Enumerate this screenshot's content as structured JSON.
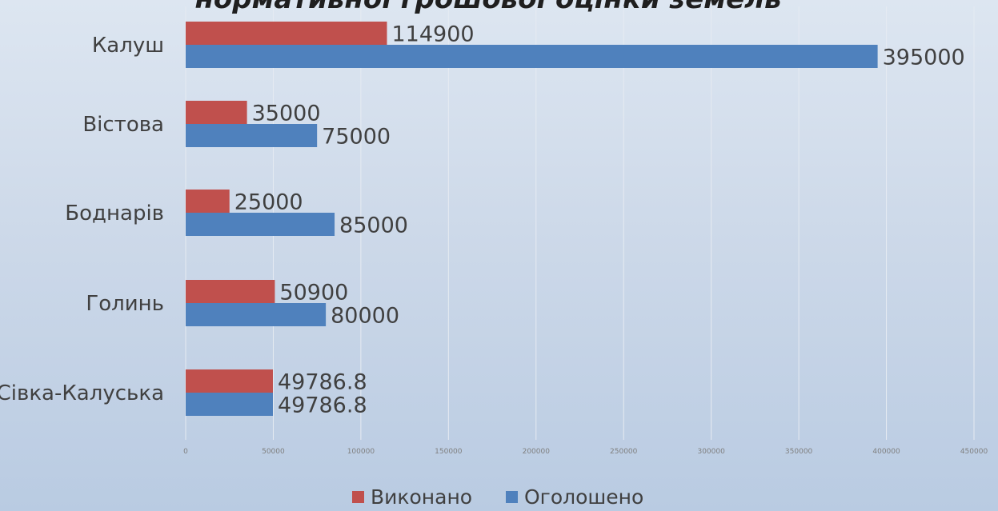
{
  "chart_data": {
    "type": "bar",
    "orientation": "horizontal",
    "title": "нормативної грошової оцінки земель",
    "categories": [
      "Калуш",
      "Вістова",
      "Боднарів",
      "Голинь",
      "Сівка-Калуська"
    ],
    "series": [
      {
        "name": "Виконано",
        "color": "#c0504d",
        "values": [
          114900,
          35000,
          25000,
          50900,
          49786.8
        ]
      },
      {
        "name": "Оголошено",
        "color": "#4f81bd",
        "values": [
          395000,
          75000,
          85000,
          80000,
          49786.8
        ]
      }
    ],
    "xlim": [
      0,
      450000
    ],
    "xticks": [
      0,
      50000,
      100000,
      150000,
      200000,
      250000,
      300000,
      350000,
      400000,
      450000
    ],
    "grid": true,
    "legend_position": "bottom"
  }
}
